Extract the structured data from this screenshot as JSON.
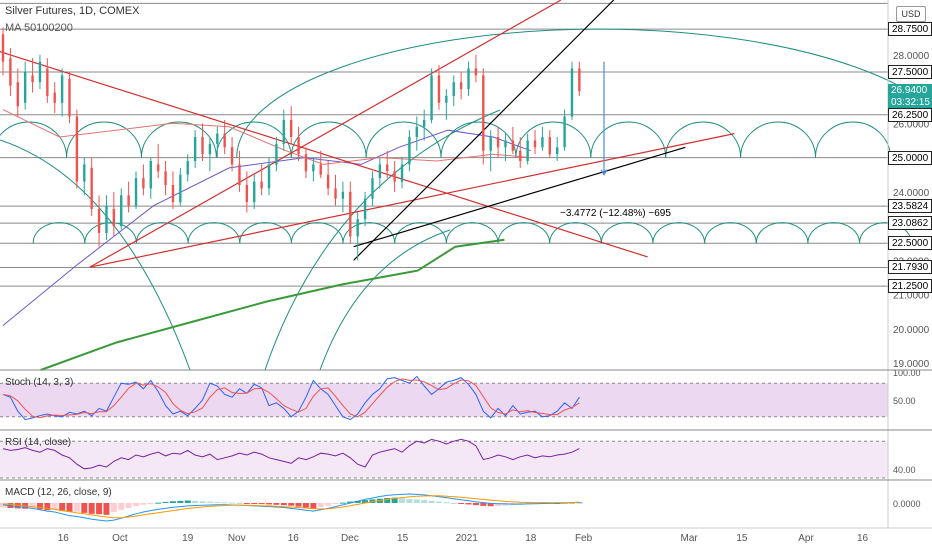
{
  "header": {
    "title": "Silver Futures, 1D, COMEX",
    "indicator": "MA 50100200",
    "currency_button": "USD"
  },
  "price_axis": {
    "labels": [
      {
        "text": "28.0000",
        "value": 28.0
      },
      {
        "text": "26.0000",
        "value": 26.0
      },
      {
        "text": "24.0000",
        "value": 24.0
      },
      {
        "text": "22.0000",
        "value": 22.0
      },
      {
        "text": "21.0000",
        "value": 21.0
      },
      {
        "text": "20.0000",
        "value": 20.0
      },
      {
        "text": "19.0000",
        "value": 19.0
      }
    ],
    "badges": [
      {
        "text": "28.7500",
        "value": 28.75,
        "bg": "#ffffff",
        "fg": "#000000"
      },
      {
        "text": "27.5000",
        "value": 27.5,
        "bg": "#ffffff",
        "fg": "#000000"
      },
      {
        "text": "26.9400",
        "value": 26.94,
        "bg": "#26a69a",
        "fg": "#ffffff"
      },
      {
        "text": "03:32:15",
        "value": 26.6,
        "bg": "#26a69a",
        "fg": "#ffffff"
      },
      {
        "text": "26.2500",
        "value": 26.25,
        "bg": "#ffffff",
        "fg": "#000000"
      },
      {
        "text": "25.0000",
        "value": 25.0,
        "bg": "#ffffff",
        "fg": "#000000"
      },
      {
        "text": "23.5824",
        "value": 23.5824,
        "bg": "#ffffff",
        "fg": "#000000"
      },
      {
        "text": "23.0862",
        "value": 23.0862,
        "bg": "#ffffff",
        "fg": "#000000"
      },
      {
        "text": "22.5000",
        "value": 22.5,
        "bg": "#ffffff",
        "fg": "#000000"
      },
      {
        "text": "21.7930",
        "value": 21.793,
        "bg": "#ffffff",
        "fg": "#000000"
      },
      {
        "text": "21.2500",
        "value": 21.25,
        "bg": "#ffffff",
        "fg": "#000000"
      }
    ],
    "horizontal_levels": [
      29.5,
      28.75,
      27.5,
      26.25,
      25.0,
      23.5824,
      23.0862,
      22.5,
      21.793,
      21.25
    ]
  },
  "time_axis": {
    "labels": [
      {
        "text": "16",
        "day": 16
      },
      {
        "text": "Oct",
        "day": 31
      },
      {
        "text": "19",
        "day": 49
      },
      {
        "text": "Nov",
        "day": 62
      },
      {
        "text": "16",
        "day": 77
      },
      {
        "text": "Dec",
        "day": 92
      },
      {
        "text": "15",
        "day": 106
      },
      {
        "text": "2021",
        "day": 123
      },
      {
        "text": "18",
        "day": 140
      },
      {
        "text": "Feb",
        "day": 154
      },
      {
        "text": "Mar",
        "day": 182
      },
      {
        "text": "15",
        "day": 196
      },
      {
        "text": "Apr",
        "day": 213
      },
      {
        "text": "16",
        "day": 228
      }
    ]
  },
  "measure": {
    "text": "−3.4772 (−12.48%) −695"
  },
  "stoch": {
    "label": "Stoch (14, 3, 3)",
    "axis": [
      {
        "text": "100.00",
        "value": 100
      },
      {
        "text": "50.00",
        "value": 50
      }
    ],
    "levels": [
      80,
      20
    ],
    "k": [
      60,
      55,
      30,
      15,
      18,
      22,
      25,
      22,
      20,
      28,
      25,
      30,
      22,
      35,
      30,
      55,
      80,
      78,
      82,
      70,
      85,
      65,
      40,
      25,
      30,
      22,
      35,
      50,
      80,
      75,
      60,
      55,
      70,
      62,
      78,
      72,
      40,
      45,
      35,
      20,
      30,
      55,
      85,
      70,
      60,
      40,
      20,
      15,
      25,
      45,
      60,
      70,
      88,
      90,
      85,
      80,
      92,
      75,
      60,
      70,
      82,
      85,
      90,
      78,
      60,
      30,
      18,
      35,
      22,
      40,
      25,
      28,
      30,
      20,
      22,
      30,
      45,
      35,
      55
    ]
  },
  "rsi": {
    "label": "RSI (14, close)",
    "axis": [
      {
        "text": "40.00",
        "value": 40
      }
    ],
    "values": [
      62,
      60,
      61,
      63,
      60,
      58,
      62,
      60,
      55,
      52,
      45,
      40,
      41,
      44,
      42,
      48,
      52,
      50,
      55,
      53,
      56,
      58,
      54,
      57,
      56,
      60,
      55,
      53,
      56,
      50,
      52,
      54,
      57,
      55,
      58,
      56,
      52,
      50,
      48,
      46,
      52,
      50,
      53,
      57,
      56,
      54,
      57,
      52,
      45,
      42,
      55,
      58,
      60,
      62,
      58,
      65,
      70,
      68,
      72,
      70,
      67,
      70,
      72,
      70,
      65,
      50,
      52,
      55,
      53,
      50,
      53,
      55,
      52,
      54,
      53,
      55,
      56,
      58,
      62
    ]
  },
  "macd": {
    "label": "MACD (12, 26, close, 9)",
    "axis": [
      {
        "text": "0.0000",
        "value": 0
      }
    ],
    "hist": [
      -0.25,
      -0.28,
      -0.3,
      -0.32,
      -0.3,
      -0.35,
      -0.4,
      -0.38,
      -0.45,
      -0.5,
      -0.48,
      -0.55,
      -0.6,
      -0.62,
      -0.66,
      -0.5,
      -0.38,
      -0.28,
      -0.18,
      -0.1,
      -0.05,
      0.02,
      0.06,
      0.1,
      0.12,
      0.14,
      0.12,
      0.1,
      0.08,
      0.06,
      0.04,
      0.02,
      0.0,
      -0.02,
      -0.04,
      -0.06,
      -0.08,
      -0.1,
      -0.12,
      -0.15,
      -0.2,
      -0.25,
      -0.3,
      -0.22,
      -0.14,
      -0.06,
      0.02,
      0.08,
      0.12,
      0.16,
      0.2,
      0.24,
      0.28,
      0.3,
      0.26,
      0.22,
      0.2,
      0.16,
      0.12,
      0.08,
      0.04,
      0.0,
      -0.04,
      -0.08,
      -0.12,
      -0.16,
      -0.18,
      -0.16,
      -0.14,
      -0.12,
      -0.1,
      -0.08,
      -0.06,
      -0.04,
      -0.02,
      0.0,
      0.02,
      0.03,
      0.04
    ],
    "macd_line": [
      -0.1,
      -0.15,
      -0.2,
      -0.25,
      -0.3,
      -0.38,
      -0.45,
      -0.5,
      -0.6,
      -0.7,
      -0.75,
      -0.82,
      -0.9,
      -0.95,
      -1.0,
      -0.95,
      -0.85,
      -0.72,
      -0.6,
      -0.5,
      -0.42,
      -0.35,
      -0.3,
      -0.24,
      -0.2,
      -0.16,
      -0.14,
      -0.12,
      -0.11,
      -0.1,
      -0.1,
      -0.11,
      -0.12,
      -0.14,
      -0.16,
      -0.18,
      -0.2,
      -0.22,
      -0.25,
      -0.3,
      -0.35,
      -0.4,
      -0.45,
      -0.38,
      -0.3,
      -0.2,
      -0.1,
      0.0,
      0.1,
      0.2,
      0.28,
      0.36,
      0.42,
      0.46,
      0.48,
      0.5,
      0.48,
      0.45,
      0.4,
      0.35,
      0.3,
      0.24,
      0.18,
      0.12,
      0.06,
      0.02,
      -0.02,
      -0.04,
      -0.05,
      -0.06,
      -0.06,
      -0.05,
      -0.04,
      -0.03,
      -0.02,
      -0.01,
      0.0,
      0.02,
      0.04
    ],
    "signal_line": [
      -0.05,
      -0.08,
      -0.12,
      -0.16,
      -0.2,
      -0.25,
      -0.3,
      -0.35,
      -0.42,
      -0.48,
      -0.55,
      -0.6,
      -0.66,
      -0.72,
      -0.78,
      -0.82,
      -0.82,
      -0.78,
      -0.72,
      -0.66,
      -0.6,
      -0.54,
      -0.48,
      -0.42,
      -0.36,
      -0.3,
      -0.26,
      -0.22,
      -0.19,
      -0.16,
      -0.14,
      -0.13,
      -0.13,
      -0.13,
      -0.14,
      -0.15,
      -0.16,
      -0.18,
      -0.2,
      -0.22,
      -0.25,
      -0.28,
      -0.32,
      -0.33,
      -0.32,
      -0.28,
      -0.22,
      -0.15,
      -0.08,
      0.0,
      0.08,
      0.14,
      0.2,
      0.26,
      0.3,
      0.34,
      0.37,
      0.39,
      0.4,
      0.4,
      0.38,
      0.35,
      0.32,
      0.28,
      0.24,
      0.2,
      0.16,
      0.12,
      0.09,
      0.06,
      0.04,
      0.03,
      0.02,
      0.02,
      0.02,
      0.02,
      0.02,
      0.03,
      0.04
    ]
  },
  "chart_data": {
    "type": "candlestick",
    "title": "Silver Futures, 1D, COMEX",
    "price_range": [
      18.8,
      29.6
    ],
    "ohlc": [
      [
        28.6,
        28.8,
        27.4,
        27.8
      ],
      [
        27.9,
        28.2,
        26.8,
        27.1
      ],
      [
        27.2,
        27.6,
        26.2,
        26.5
      ],
      [
        26.6,
        27.8,
        26.4,
        27.5
      ],
      [
        27.4,
        27.9,
        26.9,
        27.2
      ],
      [
        27.2,
        28.0,
        27.0,
        27.8
      ],
      [
        27.6,
        27.9,
        26.6,
        26.8
      ],
      [
        26.9,
        27.2,
        26.3,
        26.6
      ],
      [
        26.6,
        27.6,
        26.2,
        27.4
      ],
      [
        27.3,
        27.5,
        26.0,
        26.2
      ],
      [
        26.2,
        26.4,
        24.1,
        24.3
      ],
      [
        24.3,
        25.0,
        23.9,
        24.8
      ],
      [
        24.7,
        25.0,
        23.3,
        23.5
      ],
      [
        23.5,
        23.9,
        22.4,
        22.8
      ],
      [
        22.8,
        23.9,
        22.6,
        23.6
      ],
      [
        23.5,
        24.0,
        22.7,
        23.0
      ],
      [
        23.0,
        24.1,
        22.9,
        23.9
      ],
      [
        23.9,
        24.3,
        23.4,
        23.6
      ],
      [
        23.6,
        24.6,
        23.5,
        24.4
      ],
      [
        24.4,
        24.8,
        23.9,
        24.1
      ],
      [
        24.1,
        25.0,
        23.8,
        24.9
      ],
      [
        24.8,
        25.4,
        24.4,
        24.6
      ],
      [
        24.6,
        24.9,
        23.9,
        24.2
      ],
      [
        24.2,
        24.6,
        23.5,
        23.7
      ],
      [
        23.7,
        24.7,
        23.6,
        24.5
      ],
      [
        24.5,
        25.1,
        24.3,
        24.9
      ],
      [
        24.9,
        25.8,
        24.7,
        25.6
      ],
      [
        25.6,
        26.0,
        24.9,
        25.1
      ],
      [
        25.1,
        25.6,
        24.6,
        25.4
      ],
      [
        25.4,
        25.9,
        25.0,
        25.7
      ],
      [
        25.7,
        26.1,
        25.1,
        25.3
      ],
      [
        25.3,
        25.6,
        24.6,
        24.8
      ],
      [
        24.8,
        25.2,
        24.0,
        24.2
      ],
      [
        24.2,
        24.6,
        23.4,
        23.7
      ],
      [
        23.7,
        24.5,
        23.5,
        24.3
      ],
      [
        24.3,
        24.8,
        23.9,
        24.1
      ],
      [
        24.1,
        25.0,
        23.9,
        24.8
      ],
      [
        24.8,
        25.6,
        24.6,
        25.4
      ],
      [
        25.4,
        26.4,
        25.2,
        26.1
      ],
      [
        26.1,
        26.5,
        25.4,
        25.6
      ],
      [
        25.6,
        25.9,
        24.9,
        25.1
      ],
      [
        25.1,
        25.3,
        24.4,
        24.6
      ],
      [
        24.6,
        25.0,
        24.3,
        24.8
      ],
      [
        24.8,
        25.2,
        24.4,
        24.5
      ],
      [
        24.5,
        24.9,
        23.9,
        24.1
      ],
      [
        24.1,
        24.5,
        23.6,
        23.8
      ],
      [
        23.8,
        24.3,
        23.4,
        24.0
      ],
      [
        24.0,
        24.3,
        22.5,
        22.7
      ],
      [
        22.7,
        23.4,
        22.0,
        23.2
      ],
      [
        23.2,
        24.0,
        23.0,
        23.8
      ],
      [
        23.8,
        24.6,
        23.6,
        24.4
      ],
      [
        24.4,
        25.0,
        24.1,
        24.8
      ],
      [
        24.8,
        25.2,
        24.4,
        24.6
      ],
      [
        24.6,
        24.9,
        24.0,
        24.3
      ],
      [
        24.3,
        25.0,
        24.1,
        24.8
      ],
      [
        24.8,
        25.8,
        24.6,
        25.6
      ],
      [
        25.6,
        26.2,
        25.2,
        25.9
      ],
      [
        25.9,
        26.4,
        25.5,
        26.1
      ],
      [
        26.1,
        27.6,
        26.0,
        27.4
      ],
      [
        27.4,
        27.7,
        26.4,
        26.6
      ],
      [
        26.6,
        27.0,
        26.1,
        26.8
      ],
      [
        26.8,
        27.4,
        26.5,
        27.2
      ],
      [
        27.2,
        27.5,
        26.7,
        27.0
      ],
      [
        27.0,
        27.8,
        26.8,
        27.6
      ],
      [
        27.6,
        28.0,
        27.2,
        27.4
      ],
      [
        27.4,
        27.6,
        24.8,
        25.2
      ],
      [
        25.2,
        25.8,
        24.6,
        25.6
      ],
      [
        25.6,
        25.9,
        25.0,
        25.3
      ],
      [
        25.3,
        25.7,
        24.9,
        25.5
      ],
      [
        25.5,
        25.9,
        25.1,
        25.2
      ],
      [
        25.2,
        25.6,
        24.7,
        24.9
      ],
      [
        24.9,
        25.7,
        24.8,
        25.5
      ],
      [
        25.5,
        25.8,
        25.1,
        25.3
      ],
      [
        25.3,
        25.9,
        25.2,
        25.6
      ],
      [
        25.6,
        25.8,
        25.0,
        25.1
      ],
      [
        25.1,
        25.6,
        24.9,
        25.3
      ],
      [
        25.3,
        26.4,
        25.2,
        26.2
      ],
      [
        26.2,
        27.8,
        26.1,
        27.6
      ],
      [
        27.6,
        27.8,
        26.8,
        26.94
      ]
    ],
    "ma50": [
      [
        0,
        20.1
      ],
      [
        20,
        21.9
      ],
      [
        40,
        23.6
      ],
      [
        60,
        24.7
      ],
      [
        80,
        25.0
      ],
      [
        95,
        24.8
      ],
      [
        105,
        25.3
      ],
      [
        118,
        25.8
      ],
      [
        130,
        25.6
      ],
      [
        140,
        25.2
      ]
    ],
    "ma100": [
      [
        0,
        26.4
      ],
      [
        15,
        25.6
      ],
      [
        30,
        25.8
      ],
      [
        45,
        26.0
      ],
      [
        60,
        25.9
      ],
      [
        75,
        25.2
      ],
      [
        85,
        24.8
      ],
      [
        100,
        25.0
      ],
      [
        115,
        24.9
      ],
      [
        130,
        25.1
      ],
      [
        140,
        25.0
      ]
    ],
    "ma200": [
      [
        10,
        18.8
      ],
      [
        30,
        19.6
      ],
      [
        50,
        20.2
      ],
      [
        70,
        20.8
      ],
      [
        90,
        21.3
      ],
      [
        110,
        21.7
      ],
      [
        120,
        22.4
      ],
      [
        133,
        22.6
      ]
    ],
    "cycles": {
      "small_period": 13.7,
      "small_start": 8,
      "small_radius_value": 2.4,
      "small_base": 22.5,
      "large_center_day": 158,
      "large_radius_days": 60,
      "large_peak": 28.75,
      "large_base": 25.0
    }
  }
}
